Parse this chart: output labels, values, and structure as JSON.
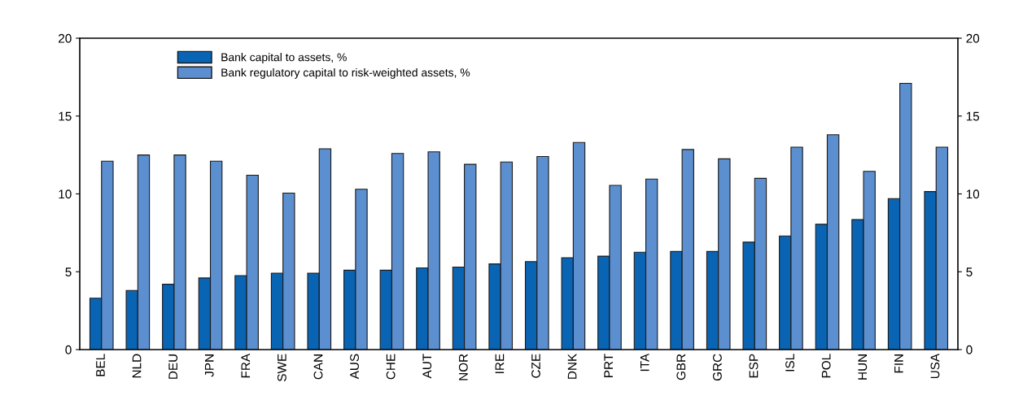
{
  "chart_data": {
    "type": "bar",
    "categories": [
      "BEL",
      "NLD",
      "DEU",
      "JPN",
      "FRA",
      "SWE",
      "CAN",
      "AUS",
      "CHE",
      "AUT",
      "NOR",
      "IRE",
      "CZE",
      "DNK",
      "PRT",
      "ITA",
      "GBR",
      "GRC",
      "ESP",
      "ISL",
      "POL",
      "HUN",
      "FIN",
      "USA"
    ],
    "series": [
      {
        "name": "Bank capital to assets, %",
        "color": "#0a64b4",
        "values": [
          3.3,
          3.8,
          4.2,
          4.6,
          4.75,
          4.9,
          4.9,
          5.1,
          5.1,
          5.25,
          5.3,
          5.5,
          5.65,
          5.9,
          6.0,
          6.25,
          6.3,
          6.3,
          6.9,
          7.3,
          8.05,
          8.35,
          9.7,
          10.15
        ]
      },
      {
        "name": "Bank regulatory capital to risk-weighted assets, %",
        "color": "#5b8fd0",
        "values": [
          12.1,
          12.5,
          12.5,
          12.1,
          11.2,
          10.05,
          12.9,
          10.3,
          12.6,
          12.7,
          11.9,
          12.05,
          12.4,
          13.3,
          10.55,
          10.95,
          12.85,
          12.25,
          11.0,
          13.0,
          13.8,
          11.45,
          17.1,
          13.0
        ]
      }
    ],
    "ylim": [
      0,
      20
    ],
    "yticks": [
      0,
      5,
      10,
      15,
      20
    ],
    "y2lim": [
      0,
      20
    ],
    "y2ticks": [
      0,
      5,
      10,
      15,
      20
    ],
    "legend": "top left",
    "grid": false
  }
}
